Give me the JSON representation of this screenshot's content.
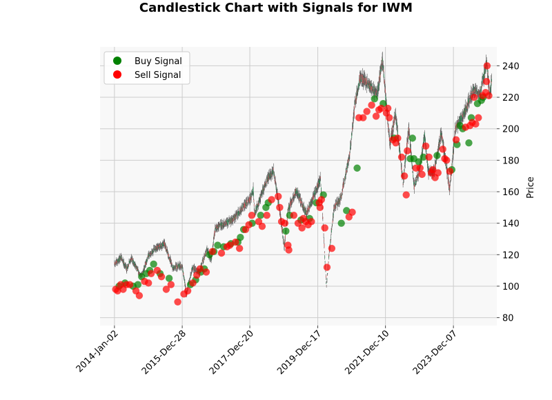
{
  "chart_data": {
    "type": "candlestick",
    "title": "Candlestick Chart with Signals for IWM",
    "xlabel": "",
    "ylabel": "Price",
    "y_axis_side": "right",
    "ylim": [
      75,
      252
    ],
    "yticks": [
      80,
      100,
      120,
      140,
      160,
      180,
      200,
      220,
      240
    ],
    "xlim": [
      "2013-08-01",
      "2025-03-15"
    ],
    "xticks": [
      {
        "date": "2014-01-02",
        "label": "2014-Jan-02"
      },
      {
        "date": "2015-12-28",
        "label": "2015-Dec-28"
      },
      {
        "date": "2017-12-20",
        "label": "2017-Dec-20"
      },
      {
        "date": "2019-12-17",
        "label": "2019-Dec-17"
      },
      {
        "date": "2021-12-10",
        "label": "2021-Dec-10"
      },
      {
        "date": "2023-12-07",
        "label": "2023-Dec-07"
      }
    ],
    "grid": true,
    "legend_position": "upper-left",
    "colors": {
      "up": "#2e8b57",
      "down": "#cd5c5c",
      "wick": "#555555",
      "buy": "#008000",
      "sell": "#ff0000",
      "plot_background": "#f8f8f8",
      "grid": "#cccccc"
    },
    "price_path": [
      [
        "2014-01-02",
        114
      ],
      [
        "2014-03-15",
        118
      ],
      [
        "2014-05-15",
        111
      ],
      [
        "2014-07-01",
        118
      ],
      [
        "2014-10-15",
        106
      ],
      [
        "2014-12-31",
        119
      ],
      [
        "2015-03-01",
        123
      ],
      [
        "2015-06-20",
        127
      ],
      [
        "2015-09-15",
        112
      ],
      [
        "2015-12-28",
        113
      ],
      [
        "2016-02-11",
        95
      ],
      [
        "2016-04-15",
        112
      ],
      [
        "2016-06-27",
        109
      ],
      [
        "2016-09-15",
        123
      ],
      [
        "2016-11-01",
        117
      ],
      [
        "2016-12-15",
        137
      ],
      [
        "2017-03-01",
        139
      ],
      [
        "2017-06-15",
        142
      ],
      [
        "2017-12-20",
        155
      ],
      [
        "2018-01-26",
        161
      ],
      [
        "2018-02-09",
        146
      ],
      [
        "2018-06-15",
        167
      ],
      [
        "2018-08-30",
        173
      ],
      [
        "2018-10-31",
        150
      ],
      [
        "2018-12-24",
        125
      ],
      [
        "2019-01-31",
        148
      ],
      [
        "2019-04-30",
        161
      ],
      [
        "2019-08-15",
        146
      ],
      [
        "2019-10-15",
        154
      ],
      [
        "2019-12-17",
        164
      ],
      [
        "2020-01-17",
        168
      ],
      [
        "2020-03-18",
        100
      ],
      [
        "2020-04-15",
        120
      ],
      [
        "2020-06-08",
        150
      ],
      [
        "2020-08-15",
        155
      ],
      [
        "2020-11-20",
        183
      ],
      [
        "2021-01-15",
        214
      ],
      [
        "2021-03-15",
        233
      ],
      [
        "2021-06-15",
        228
      ],
      [
        "2021-09-15",
        222
      ],
      [
        "2021-11-08",
        244
      ],
      [
        "2021-12-10",
        222
      ],
      [
        "2022-01-27",
        190
      ],
      [
        "2022-03-29",
        210
      ],
      [
        "2022-06-16",
        166
      ],
      [
        "2022-08-16",
        200
      ],
      [
        "2022-10-13",
        163
      ],
      [
        "2022-12-15",
        175
      ],
      [
        "2023-02-02",
        196
      ],
      [
        "2023-03-15",
        172
      ],
      [
        "2023-05-15",
        173
      ],
      [
        "2023-07-31",
        198
      ],
      [
        "2023-10-27",
        162
      ],
      [
        "2023-12-07",
        187
      ],
      [
        "2023-12-29",
        200
      ],
      [
        "2024-03-28",
        210
      ],
      [
        "2024-07-15",
        225
      ],
      [
        "2024-09-15",
        221
      ],
      [
        "2024-11-25",
        242
      ],
      [
        "2024-12-30",
        222
      ],
      [
        "2025-01-20",
        230
      ]
    ],
    "buy_signals": [
      [
        "2014-02-20",
        100
      ],
      [
        "2014-04-25",
        102
      ],
      [
        "2014-07-20",
        100
      ],
      [
        "2014-09-10",
        101
      ],
      [
        "2014-10-20",
        106
      ],
      [
        "2014-12-10",
        108
      ],
      [
        "2015-01-15",
        110
      ],
      [
        "2015-02-25",
        114
      ],
      [
        "2015-05-05",
        108
      ],
      [
        "2015-08-10",
        105
      ],
      [
        "2016-03-25",
        101
      ],
      [
        "2016-05-20",
        104
      ],
      [
        "2016-07-15",
        109
      ],
      [
        "2016-08-20",
        111
      ],
      [
        "2016-10-15",
        120
      ],
      [
        "2016-12-01",
        122
      ],
      [
        "2017-01-10",
        126
      ],
      [
        "2017-03-15",
        125
      ],
      [
        "2017-06-01",
        127
      ],
      [
        "2017-08-15",
        128
      ],
      [
        "2017-09-10",
        131
      ],
      [
        "2017-10-15",
        136
      ],
      [
        "2018-01-15",
        140
      ],
      [
        "2018-04-15",
        145
      ],
      [
        "2018-06-10",
        150
      ],
      [
        "2018-07-05",
        153
      ],
      [
        "2019-01-10",
        135
      ],
      [
        "2019-02-20",
        145
      ],
      [
        "2019-06-20",
        142
      ],
      [
        "2019-09-20",
        143
      ],
      [
        "2019-12-01",
        153
      ],
      [
        "2020-02-15",
        158
      ],
      [
        "2020-08-25",
        140
      ],
      [
        "2020-10-20",
        148
      ],
      [
        "2021-02-10",
        175
      ],
      [
        "2021-08-15",
        219
      ],
      [
        "2021-11-15",
        216
      ],
      [
        "2022-03-15",
        194
      ],
      [
        "2022-09-01",
        181
      ],
      [
        "2022-09-25",
        194
      ],
      [
        "2022-10-10",
        181
      ],
      [
        "2022-12-01",
        179
      ],
      [
        "2023-01-20",
        182
      ],
      [
        "2023-06-15",
        183
      ],
      [
        "2023-11-20",
        174
      ],
      [
        "2024-01-15",
        190
      ],
      [
        "2024-02-15",
        202
      ],
      [
        "2024-03-15",
        200
      ],
      [
        "2024-05-20",
        191
      ],
      [
        "2024-06-15",
        207
      ],
      [
        "2024-08-20",
        216
      ],
      [
        "2024-10-01",
        218
      ],
      [
        "2024-10-20",
        220
      ]
    ],
    "sell_signals": [
      [
        "2014-01-15",
        98
      ],
      [
        "2014-02-05",
        97
      ],
      [
        "2014-03-10",
        101
      ],
      [
        "2014-04-05",
        98
      ],
      [
        "2014-05-10",
        101
      ],
      [
        "2014-06-15",
        101
      ],
      [
        "2014-08-20",
        97
      ],
      [
        "2014-09-25",
        94
      ],
      [
        "2014-11-20",
        103
      ],
      [
        "2015-01-01",
        102
      ],
      [
        "2015-01-30",
        108
      ],
      [
        "2015-04-05",
        110
      ],
      [
        "2015-05-20",
        106
      ],
      [
        "2015-07-10",
        98
      ],
      [
        "2015-08-30",
        101
      ],
      [
        "2015-11-10",
        90
      ],
      [
        "2016-01-15",
        95
      ],
      [
        "2016-02-25",
        97
      ],
      [
        "2016-04-20",
        102
      ],
      [
        "2016-06-01",
        107
      ],
      [
        "2016-07-05",
        111
      ],
      [
        "2016-09-10",
        109
      ],
      [
        "2016-11-15",
        122
      ],
      [
        "2017-02-20",
        121
      ],
      [
        "2017-04-20",
        125
      ],
      [
        "2017-05-20",
        126
      ],
      [
        "2017-07-20",
        128
      ],
      [
        "2017-09-01",
        124
      ],
      [
        "2017-11-05",
        136
      ],
      [
        "2017-12-10",
        139
      ],
      [
        "2018-01-10",
        145
      ],
      [
        "2018-03-25",
        141
      ],
      [
        "2018-05-01",
        138
      ],
      [
        "2018-06-20",
        145
      ],
      [
        "2018-08-10",
        155
      ],
      [
        "2018-10-20",
        157
      ],
      [
        "2018-11-05",
        150
      ],
      [
        "2018-11-25",
        141
      ],
      [
        "2018-12-30",
        140
      ],
      [
        "2019-02-01",
        126
      ],
      [
        "2019-02-10",
        123
      ],
      [
        "2019-04-05",
        145
      ],
      [
        "2019-05-20",
        140
      ],
      [
        "2019-07-01",
        137
      ],
      [
        "2019-07-15",
        143
      ],
      [
        "2019-08-10",
        141
      ],
      [
        "2019-09-05",
        139
      ],
      [
        "2019-10-10",
        141
      ],
      [
        "2020-01-01",
        153
      ],
      [
        "2020-01-10",
        150
      ],
      [
        "2020-01-25",
        155
      ],
      [
        "2020-03-01",
        137
      ],
      [
        "2020-03-25",
        112
      ],
      [
        "2020-05-15",
        124
      ],
      [
        "2020-11-15",
        144
      ],
      [
        "2020-12-20",
        147
      ],
      [
        "2021-03-01",
        207
      ],
      [
        "2021-04-15",
        207
      ],
      [
        "2021-05-25",
        211
      ],
      [
        "2021-07-15",
        215
      ],
      [
        "2021-09-01",
        208
      ],
      [
        "2021-10-01",
        212
      ],
      [
        "2021-10-25",
        213
      ],
      [
        "2021-12-20",
        210
      ],
      [
        "2022-01-05",
        213
      ],
      [
        "2022-01-20",
        207
      ],
      [
        "2022-03-01",
        193
      ],
      [
        "2022-03-30",
        191
      ],
      [
        "2022-04-20",
        194
      ],
      [
        "2022-06-01",
        182
      ],
      [
        "2022-07-01",
        170
      ],
      [
        "2022-07-20",
        158
      ],
      [
        "2022-08-01",
        186
      ],
      [
        "2022-11-01",
        175
      ],
      [
        "2022-12-15",
        175
      ],
      [
        "2023-01-05",
        171
      ],
      [
        "2023-02-15",
        189
      ],
      [
        "2023-03-20",
        182
      ],
      [
        "2023-04-15",
        172
      ],
      [
        "2023-05-01",
        174
      ],
      [
        "2023-05-25",
        169
      ],
      [
        "2023-06-25",
        172
      ],
      [
        "2023-08-15",
        187
      ],
      [
        "2023-09-05",
        181
      ],
      [
        "2023-09-25",
        180
      ],
      [
        "2023-10-30",
        173
      ],
      [
        "2024-01-05",
        193
      ],
      [
        "2024-04-15",
        201
      ],
      [
        "2024-06-01",
        202
      ],
      [
        "2024-06-25",
        204
      ],
      [
        "2024-07-15",
        220
      ],
      [
        "2024-08-01",
        203
      ],
      [
        "2024-08-30",
        207
      ],
      [
        "2024-10-15",
        221
      ],
      [
        "2024-11-15",
        223
      ],
      [
        "2024-11-25",
        230
      ],
      [
        "2024-12-01",
        240
      ],
      [
        "2024-12-20",
        221
      ]
    ],
    "legend": [
      {
        "label": "Buy Signal",
        "color": "#008000"
      },
      {
        "label": "Sell Signal",
        "color": "#ff0000"
      }
    ]
  }
}
